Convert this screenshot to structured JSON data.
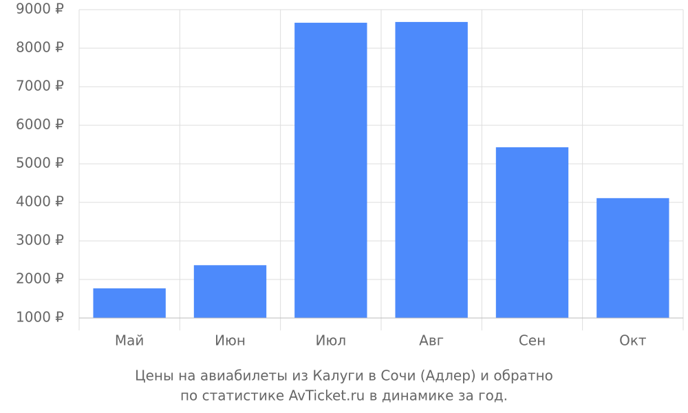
{
  "chart_data": {
    "type": "bar",
    "title": [
      "Цены на авиабилеты из Калуги в Сочи (Адлер) и обратно",
      "по статистике AvTicket.ru в динамике за год."
    ],
    "categories": [
      "Май",
      "Июн",
      "Июл",
      "Авг",
      "Сен",
      "Окт"
    ],
    "values": [
      1770,
      2370,
      8660,
      8680,
      5430,
      4110
    ],
    "color": "#4d8afb",
    "ylim": [
      1000,
      9000
    ],
    "yticks": [
      {
        "value": 1000,
        "label": "1000 ₽"
      },
      {
        "value": 2000,
        "label": "2000 ₽"
      },
      {
        "value": 3000,
        "label": "3000 ₽"
      },
      {
        "value": 4000,
        "label": "4000 ₽"
      },
      {
        "value": 5000,
        "label": "5000 ₽"
      },
      {
        "value": 6000,
        "label": "6000 ₽"
      },
      {
        "value": 7000,
        "label": "7000 ₽"
      },
      {
        "value": 8000,
        "label": "8000 ₽"
      },
      {
        "value": 9000,
        "label": "9000 ₽"
      }
    ],
    "grid": true
  }
}
